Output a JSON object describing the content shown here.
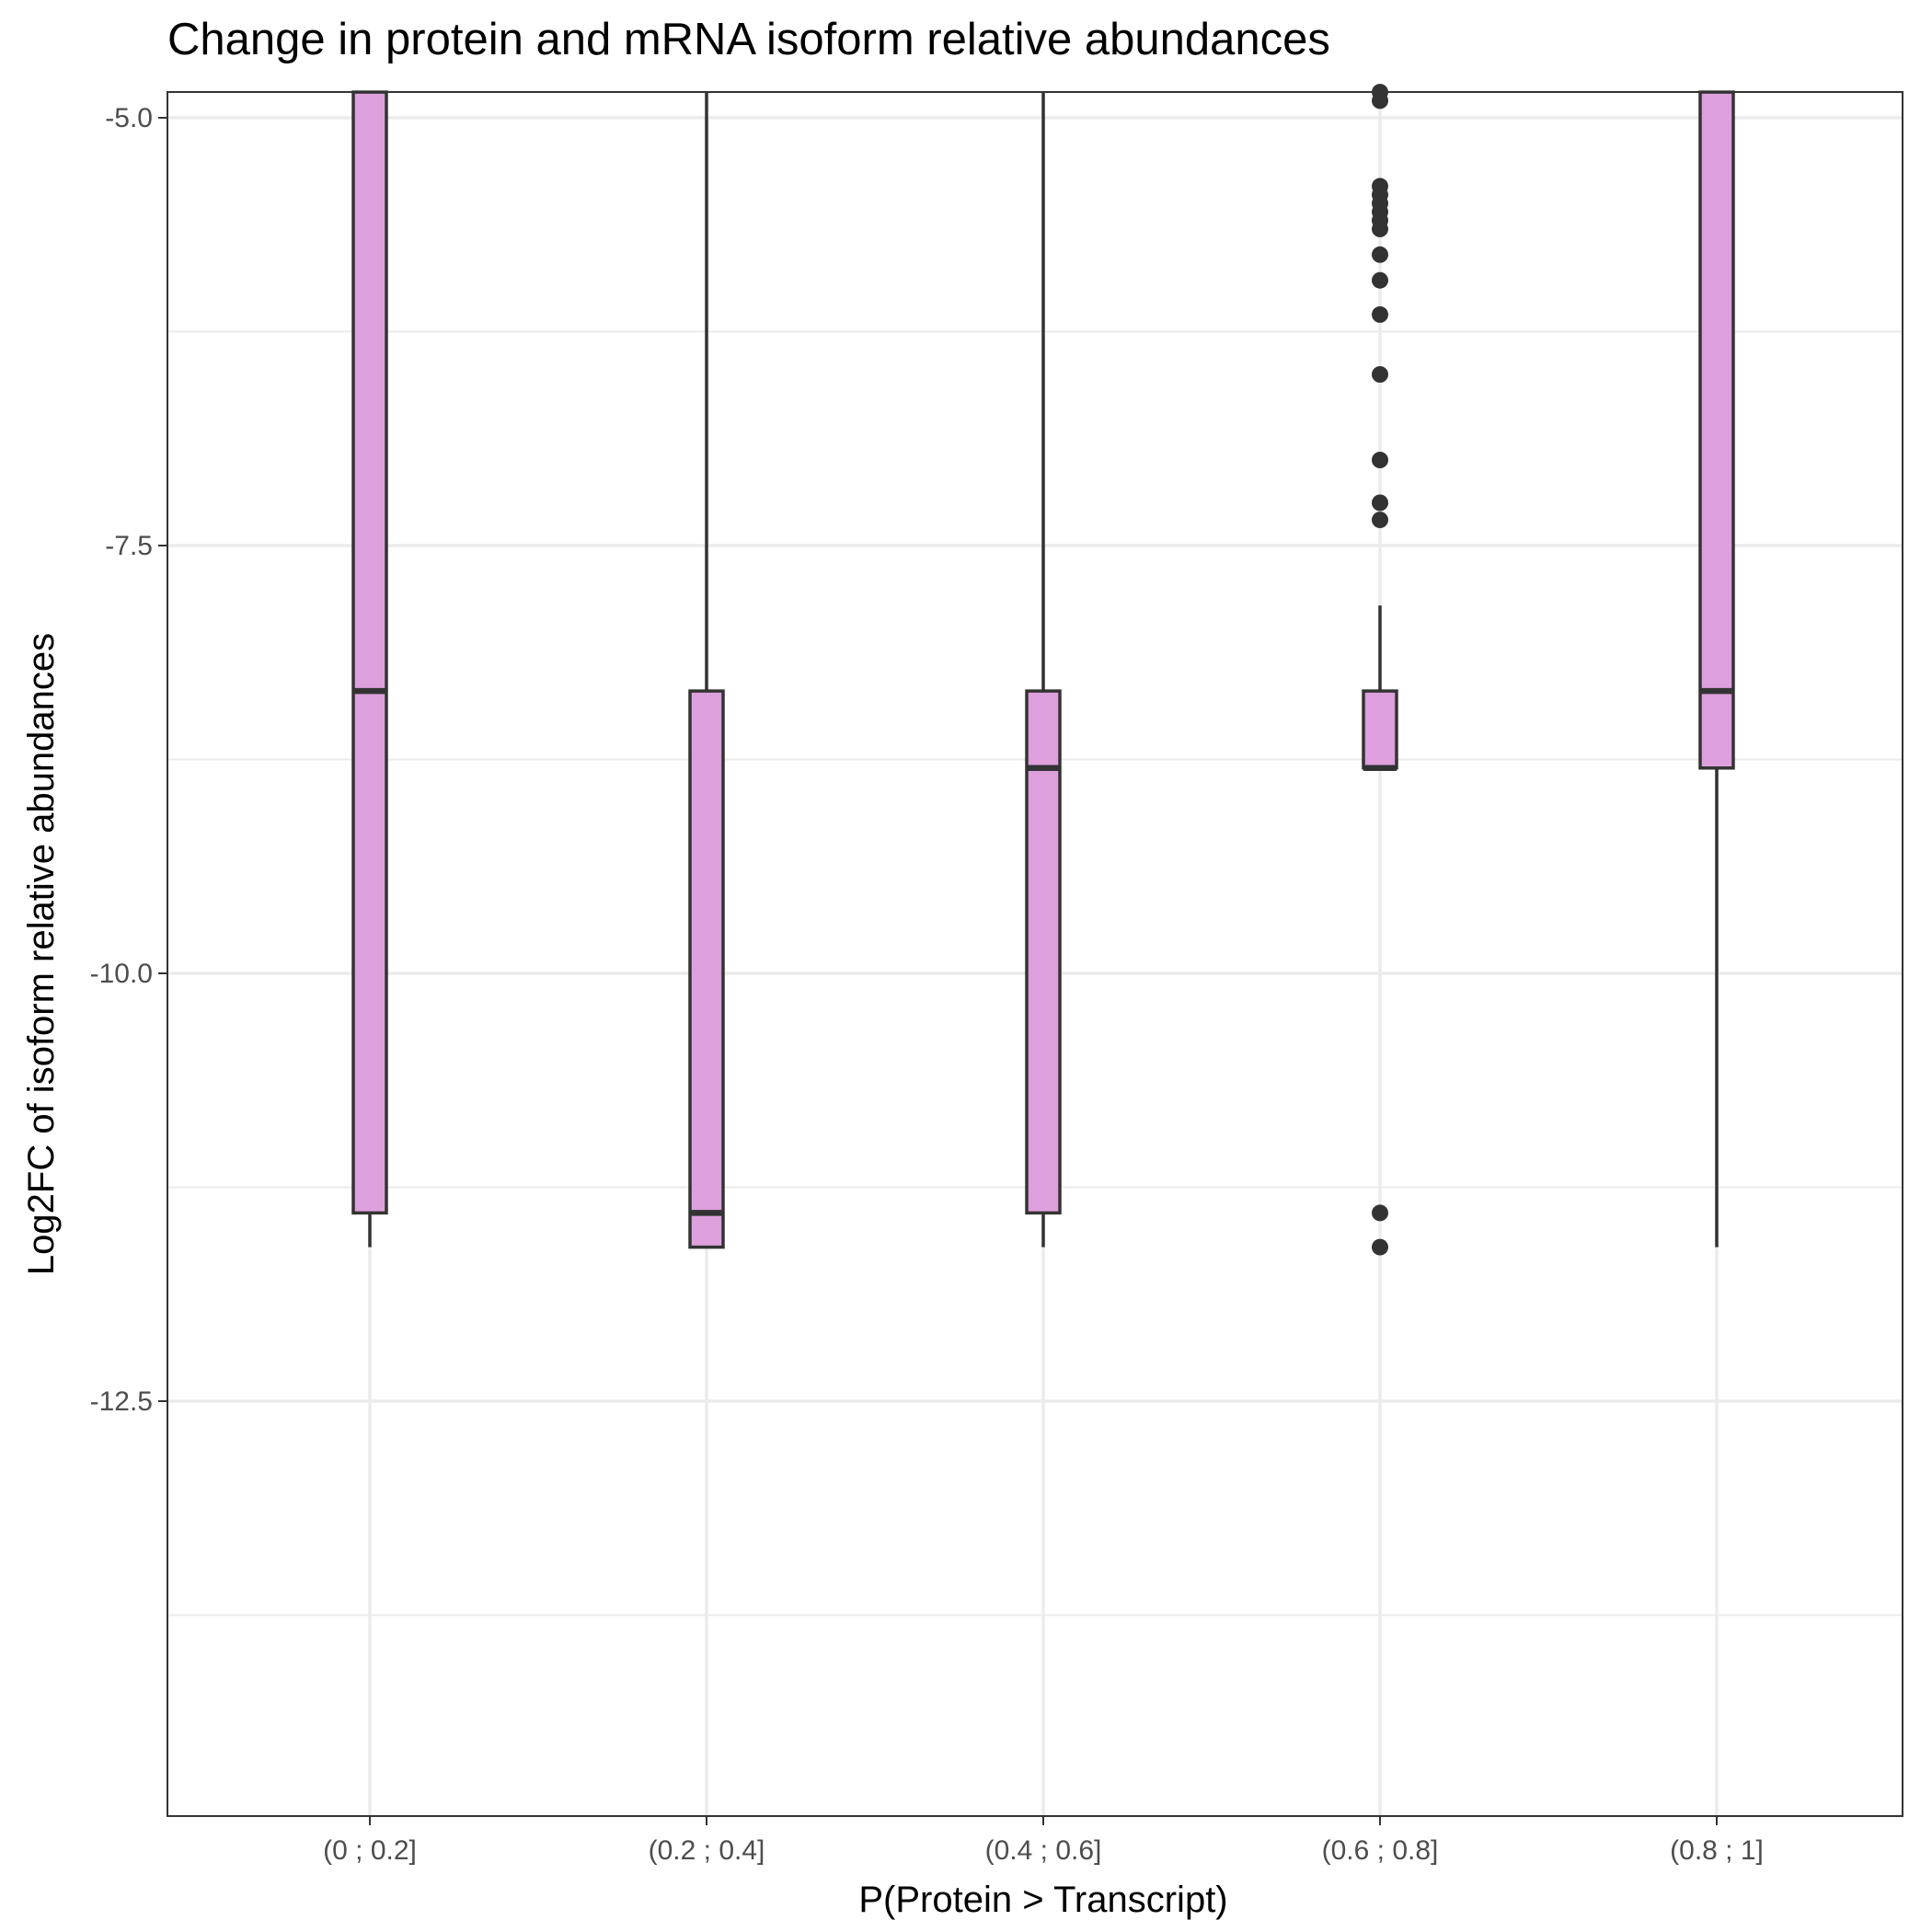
{
  "chart_data": {
    "type": "boxplot",
    "title": "Change in protein and mRNA isoform relative abundances",
    "xlabel": "P(Protein > Transcript)",
    "ylabel": "Log2FC of isoform relative abundances",
    "ylim": [
      -14.75,
      -4.85
    ],
    "yticks": [
      -5.0,
      -7.5,
      -10.0,
      -12.5
    ],
    "ytick_labels": [
      "-5.0",
      "-7.5",
      "-10.0",
      "-12.5"
    ],
    "categories": [
      "(0 ; 0.2]",
      "(0.2 ; 0.4]",
      "(0.4 ; 0.6]",
      "(0.6 ; 0.8]",
      "(0.8 ; 1]"
    ],
    "boxes": [
      {
        "q1": -11.4,
        "median": -8.35,
        "q3": -4.85,
        "whisker_low": -11.6,
        "whisker_high": -4.85
      },
      {
        "q1": -11.6,
        "median": -11.4,
        "q3": -8.35,
        "whisker_low": -11.6,
        "whisker_high": -4.85
      },
      {
        "q1": -11.4,
        "median": -8.8,
        "q3": -8.35,
        "whisker_low": -11.6,
        "whisker_high": -4.85
      },
      {
        "q1": -8.8,
        "median": -8.8,
        "q3": -8.35,
        "whisker_low": -8.8,
        "whisker_high": -7.85
      },
      {
        "q1": -8.8,
        "median": -8.35,
        "q3": -4.85,
        "whisker_low": -11.6,
        "whisker_high": -4.85
      }
    ],
    "outliers": [
      {
        "category": "(0.6 ; 0.8]",
        "values": [
          -4.85,
          -4.9,
          -5.4,
          -5.45,
          -5.5,
          -5.55,
          -5.6,
          -5.65,
          -5.8,
          -5.95,
          -6.15,
          -6.5,
          -7.0,
          -7.25,
          -7.35,
          -11.4,
          -11.6
        ]
      }
    ],
    "fill_color": "#dda0dd",
    "line_color": "#333333",
    "grid": true
  }
}
